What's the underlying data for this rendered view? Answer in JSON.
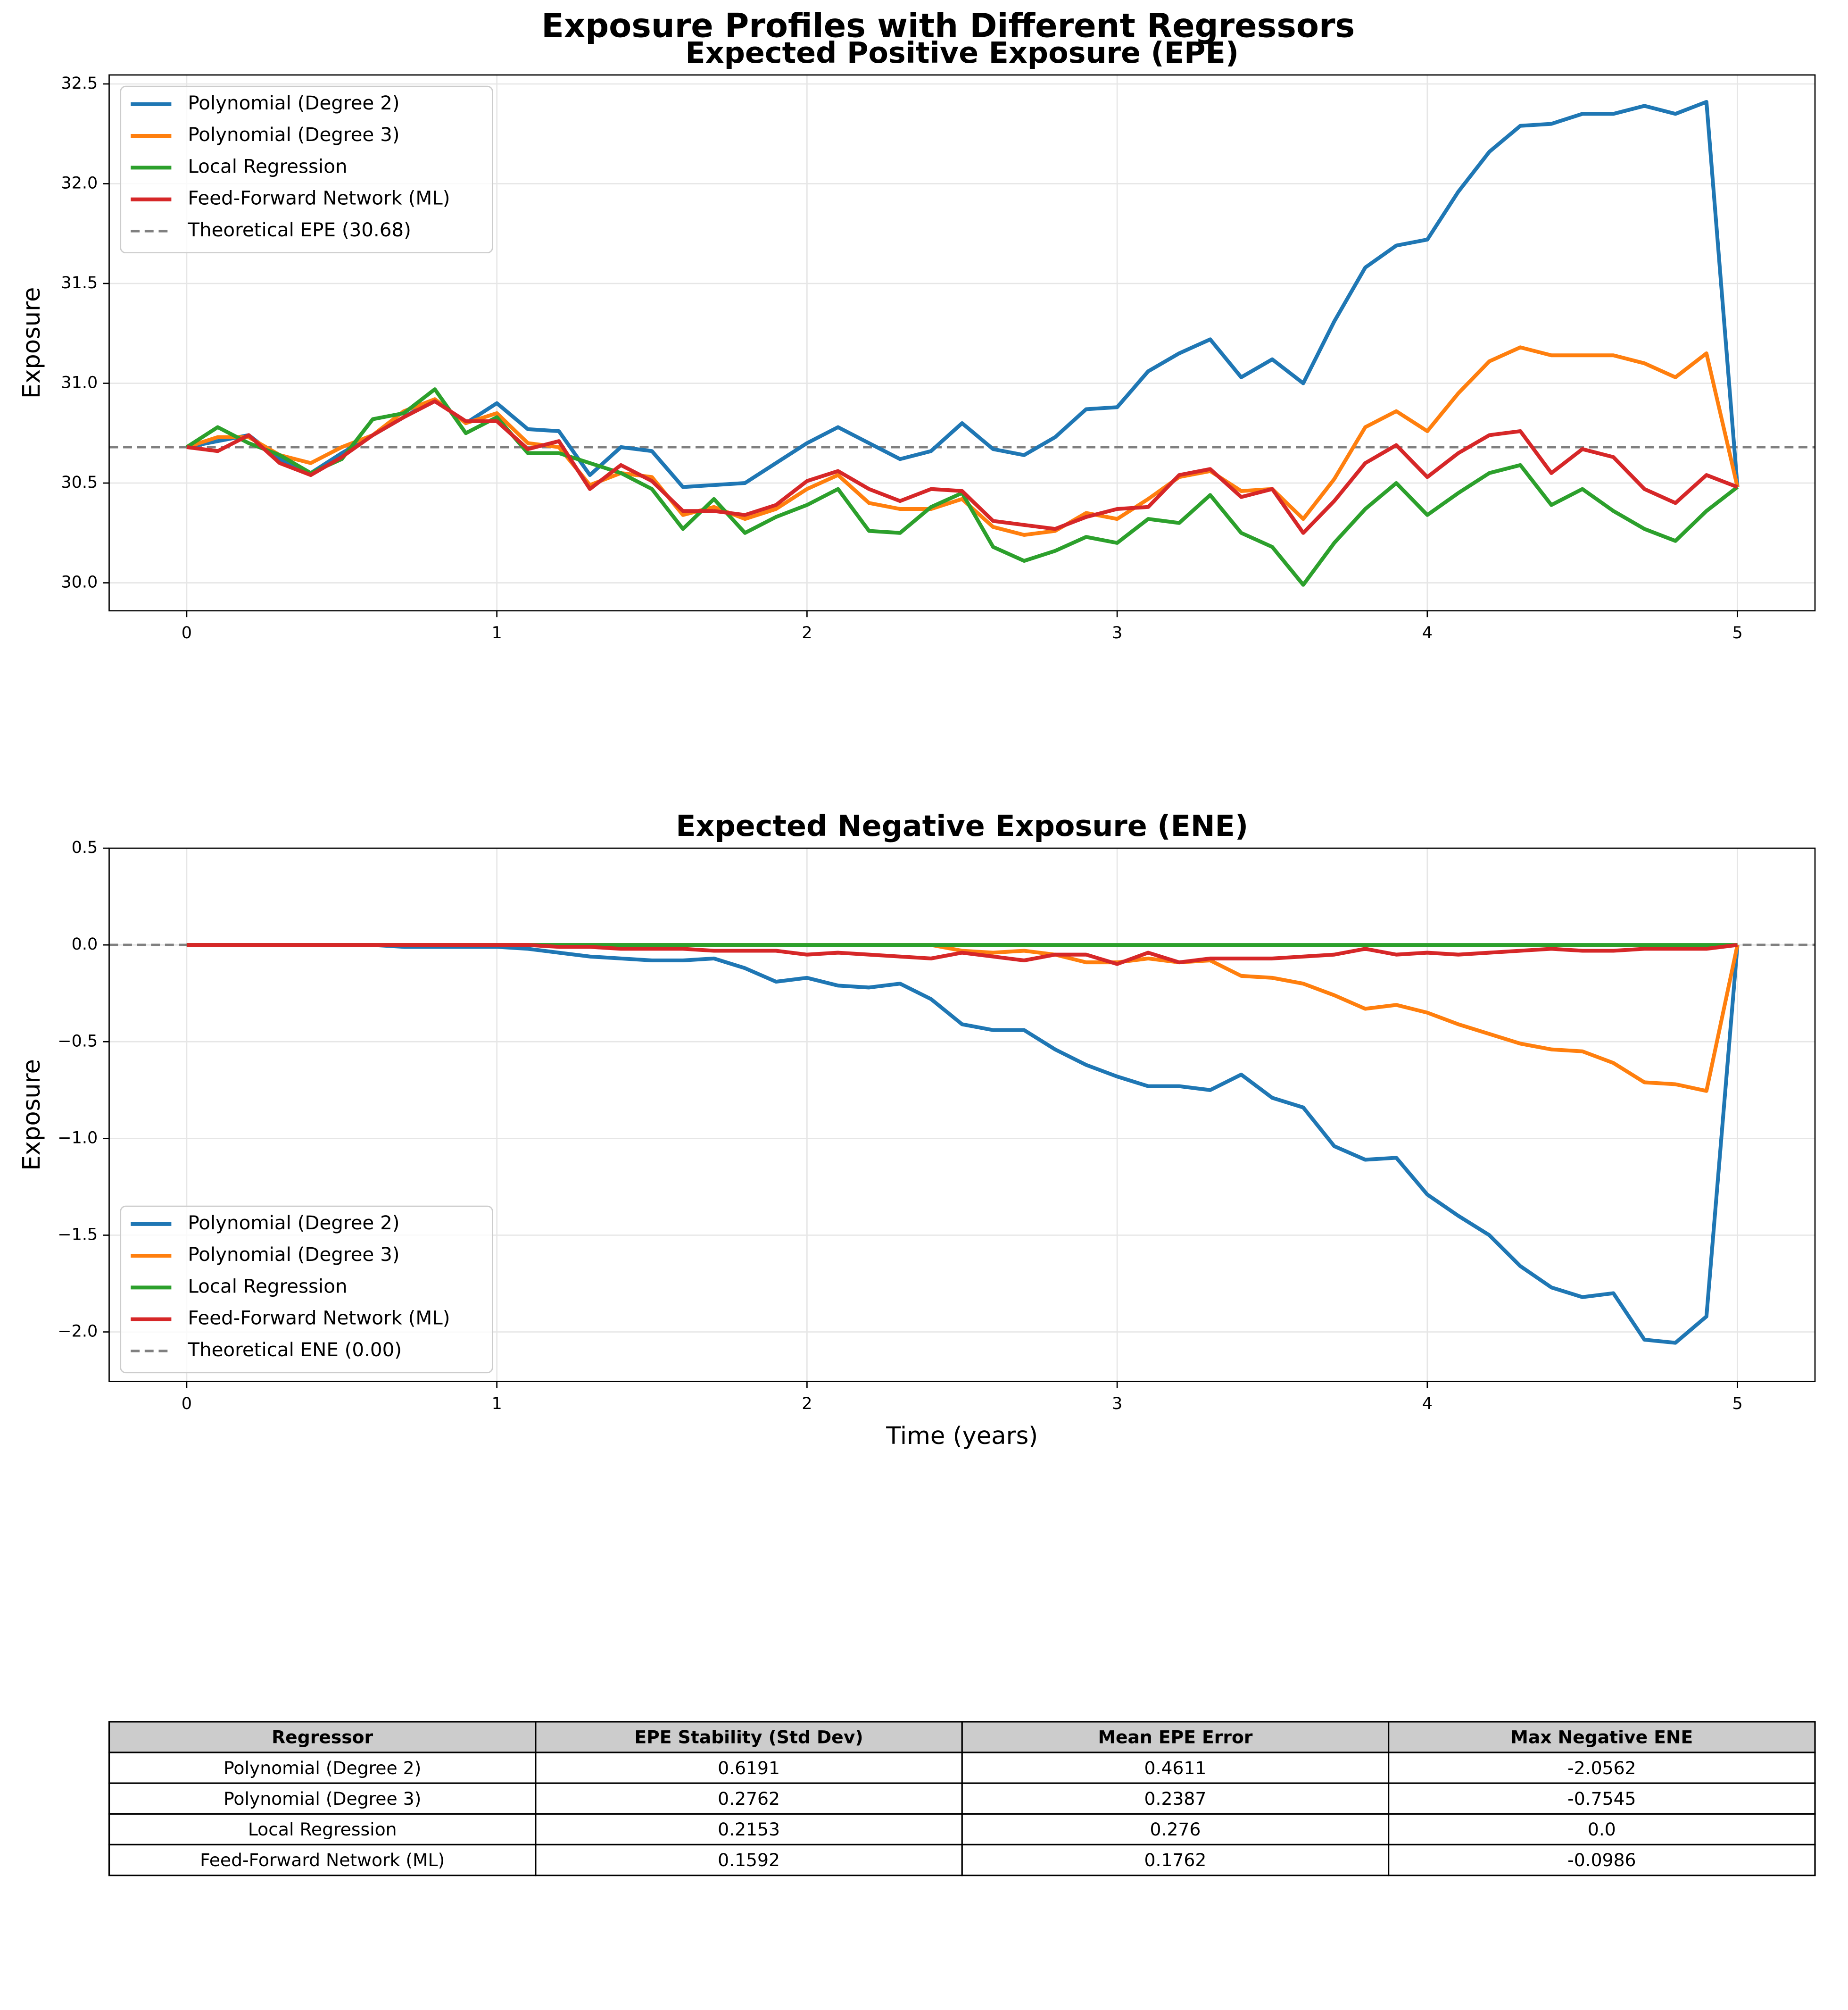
{
  "title": "Exposure Profiles with Different Regressors",
  "chart_data": [
    {
      "type": "line",
      "title": "Expected Positive Exposure (EPE)",
      "ylabel": "Exposure",
      "x": [
        0,
        0.1,
        0.2,
        0.3,
        0.4,
        0.5,
        0.6,
        0.7,
        0.8,
        0.9,
        1,
        1.1,
        1.2,
        1.3,
        1.4,
        1.5,
        1.6,
        1.7,
        1.8,
        1.9,
        2,
        2.1,
        2.2,
        2.3,
        2.4,
        2.5,
        2.6,
        2.7,
        2.8,
        2.9,
        3,
        3.1,
        3.2,
        3.3,
        3.4,
        3.5,
        3.6,
        3.7,
        3.8,
        3.9,
        4,
        4.1,
        4.2,
        4.3,
        4.4,
        4.5,
        4.6,
        4.7,
        4.8,
        4.9,
        5
      ],
      "series": [
        {
          "name": "Polynomial (Degree 2)",
          "color": "#1f77b4",
          "values": [
            30.68,
            30.71,
            30.74,
            30.62,
            30.55,
            30.65,
            30.74,
            30.83,
            30.92,
            30.8,
            30.9,
            30.77,
            30.76,
            30.54,
            30.68,
            30.66,
            30.48,
            30.49,
            30.5,
            30.6,
            30.7,
            30.78,
            30.7,
            30.62,
            30.66,
            30.8,
            30.67,
            30.64,
            30.73,
            30.87,
            30.88,
            31.06,
            31.15,
            31.22,
            31.03,
            31.12,
            31.0,
            31.31,
            31.58,
            31.69,
            31.72,
            31.96,
            32.16,
            32.29,
            32.3,
            32.35,
            32.35,
            32.39,
            32.35,
            32.41,
            30.48
          ]
        },
        {
          "name": "Polynomial (Degree 3)",
          "color": "#ff7f0e",
          "values": [
            30.68,
            30.73,
            30.73,
            30.64,
            30.6,
            30.68,
            30.74,
            30.86,
            30.92,
            30.8,
            30.85,
            30.7,
            30.68,
            30.49,
            30.55,
            30.53,
            30.34,
            30.38,
            30.32,
            30.37,
            30.47,
            30.54,
            30.4,
            30.37,
            30.37,
            30.42,
            30.28,
            30.24,
            30.26,
            30.35,
            30.32,
            30.42,
            30.53,
            30.56,
            30.46,
            30.47,
            30.32,
            30.52,
            30.78,
            30.86,
            30.76,
            30.95,
            31.11,
            31.18,
            31.14,
            31.14,
            31.14,
            31.1,
            31.03,
            31.15,
            30.48
          ]
        },
        {
          "name": "Local Regression",
          "color": "#2ca02c",
          "values": [
            30.68,
            30.78,
            30.7,
            30.64,
            30.55,
            30.62,
            30.82,
            30.85,
            30.97,
            30.75,
            30.83,
            30.65,
            30.65,
            30.6,
            30.55,
            30.47,
            30.27,
            30.42,
            30.25,
            30.33,
            30.39,
            30.47,
            30.26,
            30.25,
            30.38,
            30.45,
            30.18,
            30.11,
            30.16,
            30.23,
            30.2,
            30.32,
            30.3,
            30.44,
            30.25,
            30.18,
            29.99,
            30.2,
            30.37,
            30.5,
            30.34,
            30.45,
            30.55,
            30.59,
            30.39,
            30.47,
            30.36,
            30.27,
            30.21,
            30.36,
            30.48
          ]
        },
        {
          "name": "Feed-Forward Network (ML)",
          "color": "#d62728",
          "values": [
            30.68,
            30.66,
            30.74,
            30.6,
            30.54,
            30.63,
            30.74,
            30.83,
            30.91,
            30.81,
            30.81,
            30.67,
            30.71,
            30.47,
            30.59,
            30.51,
            30.36,
            30.36,
            30.34,
            30.39,
            30.51,
            30.56,
            30.47,
            30.41,
            30.47,
            30.46,
            30.31,
            30.29,
            30.27,
            30.33,
            30.37,
            30.38,
            30.54,
            30.57,
            30.43,
            30.47,
            30.25,
            30.41,
            30.6,
            30.69,
            30.53,
            30.65,
            30.74,
            30.76,
            30.55,
            30.67,
            30.63,
            30.47,
            30.4,
            30.54,
            30.48
          ]
        }
      ],
      "reference_line": {
        "name": "Theoretical EPE (30.68)",
        "value": 30.68,
        "color": "#808080"
      },
      "xlim": [
        -0.25,
        5.25
      ],
      "xticks": [
        0,
        1,
        2,
        3,
        4,
        5
      ],
      "ylim": [
        29.86,
        32.545
      ],
      "yticks": [
        {
          "value": 30,
          "label": "30.0"
        },
        30.5,
        {
          "value": 31,
          "label": "31.0"
        },
        31.5,
        {
          "value": 32,
          "label": "32.0"
        },
        32.5
      ],
      "grid": true,
      "legend": "upper left"
    },
    {
      "type": "line",
      "title": "Expected Negative Exposure (ENE)",
      "ylabel": "Exposure",
      "xlabel": "Time (years)",
      "x": [
        0,
        0.1,
        0.2,
        0.3,
        0.4,
        0.5,
        0.6,
        0.7,
        0.8,
        0.9,
        1,
        1.1,
        1.2,
        1.3,
        1.4,
        1.5,
        1.6,
        1.7,
        1.8,
        1.9,
        2,
        2.1,
        2.2,
        2.3,
        2.4,
        2.5,
        2.6,
        2.7,
        2.8,
        2.9,
        3,
        3.1,
        3.2,
        3.3,
        3.4,
        3.5,
        3.6,
        3.7,
        3.8,
        3.9,
        4,
        4.1,
        4.2,
        4.3,
        4.4,
        4.5,
        4.6,
        4.7,
        4.8,
        4.9,
        5
      ],
      "series": [
        {
          "name": "Polynomial (Degree 2)",
          "color": "#1f77b4",
          "values": [
            0,
            0,
            0,
            0,
            0,
            0,
            0,
            -0.01,
            -0.01,
            -0.01,
            -0.01,
            -0.02,
            -0.04,
            -0.06,
            -0.07,
            -0.08,
            -0.08,
            -0.07,
            -0.12,
            -0.19,
            -0.17,
            -0.21,
            -0.22,
            -0.2,
            -0.28,
            -0.41,
            -0.44,
            -0.44,
            -0.54,
            -0.62,
            -0.68,
            -0.73,
            -0.73,
            -0.75,
            -0.67,
            -0.79,
            -0.84,
            -1.04,
            -1.11,
            -1.1,
            -1.29,
            -1.4,
            -1.5,
            -1.66,
            -1.77,
            -1.82,
            -1.8,
            -2.04,
            -2.0562,
            -1.92,
            0
          ]
        },
        {
          "name": "Polynomial (Degree 3)",
          "color": "#ff7f0e",
          "values": [
            0,
            0,
            0,
            0,
            0,
            0,
            0,
            0,
            0,
            0,
            0,
            0,
            0,
            0,
            0,
            0,
            0,
            0,
            0,
            0,
            0,
            0,
            0,
            0,
            0,
            -0.03,
            -0.04,
            -0.03,
            -0.05,
            -0.09,
            -0.09,
            -0.07,
            -0.09,
            -0.08,
            -0.16,
            -0.17,
            -0.2,
            -0.26,
            -0.33,
            -0.31,
            -0.35,
            -0.41,
            -0.46,
            -0.51,
            -0.54,
            -0.55,
            -0.61,
            -0.71,
            -0.72,
            -0.7545,
            0
          ]
        },
        {
          "name": "Local Regression",
          "color": "#2ca02c",
          "values": [
            0,
            0,
            0,
            0,
            0,
            0,
            0,
            0,
            0,
            0,
            0,
            0,
            0,
            0,
            0,
            0,
            0,
            0,
            0,
            0,
            0,
            0,
            0,
            0,
            0,
            0,
            0,
            0,
            0,
            0,
            0,
            0,
            0,
            0,
            0,
            0,
            0,
            0,
            0,
            0,
            0,
            0,
            0,
            0,
            0,
            0,
            0,
            0,
            0,
            0,
            0
          ]
        },
        {
          "name": "Feed-Forward Network (ML)",
          "color": "#d62728",
          "values": [
            0,
            0,
            0,
            0,
            0,
            0,
            0,
            0,
            0,
            0,
            0,
            0,
            -0.01,
            -0.01,
            -0.02,
            -0.02,
            -0.02,
            -0.03,
            -0.03,
            -0.03,
            -0.05,
            -0.04,
            -0.05,
            -0.06,
            -0.07,
            -0.04,
            -0.06,
            -0.08,
            -0.05,
            -0.05,
            -0.0986,
            -0.04,
            -0.09,
            -0.07,
            -0.07,
            -0.07,
            -0.06,
            -0.05,
            -0.02,
            -0.05,
            -0.04,
            -0.05,
            -0.04,
            -0.03,
            -0.02,
            -0.03,
            -0.03,
            -0.02,
            -0.02,
            -0.02,
            0
          ]
        }
      ],
      "reference_line": {
        "name": "Theoretical ENE (0.00)",
        "value": 0,
        "color": "#808080"
      },
      "xlim": [
        -0.25,
        5.25
      ],
      "xticks": [
        0,
        1,
        2,
        3,
        4,
        5
      ],
      "ylim": [
        -2.256,
        0.5
      ],
      "yticks": [
        0.5,
        {
          "value": 0,
          "label": "0.0"
        },
        {
          "value": -0.5,
          "label": "−0.5"
        },
        {
          "value": -1,
          "label": "−1.0"
        },
        {
          "value": -1.5,
          "label": "−1.5"
        },
        {
          "value": -2,
          "label": "−2.0"
        }
      ],
      "grid": true,
      "legend": "lower left"
    }
  ],
  "table": {
    "header": [
      "Regressor",
      "EPE Stability (Std Dev)",
      "Mean EPE Error",
      "Max Negative ENE"
    ],
    "rows": [
      [
        "Polynomial (Degree 2)",
        "0.6191",
        "0.4611",
        "-2.0562"
      ],
      [
        "Polynomial (Degree 3)",
        "0.2762",
        "0.2387",
        "-0.7545"
      ],
      [
        "Local Regression",
        "0.2153",
        "0.276",
        "0.0"
      ],
      [
        "Feed-Forward Network (ML)",
        "0.1592",
        "0.1762",
        "-0.0986"
      ]
    ]
  }
}
